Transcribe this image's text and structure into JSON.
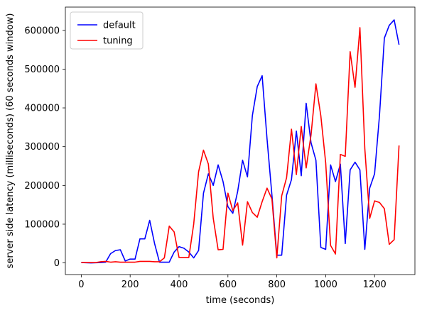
{
  "chart_data": {
    "type": "line",
    "title": "",
    "xlabel": "time (seconds)",
    "ylabel": "server side latency (milliseconds) (60 seconds window)",
    "xlim": [
      -65,
      1365
    ],
    "ylim": [
      -30000,
      660000
    ],
    "xticks": [
      0,
      200,
      400,
      600,
      800,
      1000,
      1200
    ],
    "xtick_labels": [
      "0",
      "200",
      "400",
      "600",
      "800",
      "1000",
      "1200"
    ],
    "yticks": [
      0,
      100000,
      200000,
      300000,
      400000,
      500000,
      600000
    ],
    "ytick_labels": [
      "0",
      "100000",
      "200000",
      "300000",
      "400000",
      "500000",
      "600000"
    ],
    "grid": false,
    "legend_position": "top-left",
    "series": [
      {
        "name": "default",
        "color": "#0000ff",
        "x": [
          0,
          20,
          40,
          60,
          80,
          100,
          120,
          140,
          160,
          180,
          200,
          220,
          240,
          260,
          280,
          300,
          320,
          340,
          360,
          380,
          400,
          420,
          440,
          460,
          480,
          500,
          520,
          540,
          560,
          580,
          600,
          620,
          640,
          660,
          680,
          700,
          720,
          740,
          760,
          780,
          800,
          820,
          840,
          860,
          880,
          900,
          920,
          940,
          960,
          980,
          1000,
          1020,
          1040,
          1060,
          1080,
          1100,
          1120,
          1140,
          1160,
          1180,
          1200,
          1220,
          1240,
          1260,
          1280,
          1300
        ],
        "y": [
          1000,
          500,
          0,
          500,
          1000,
          2000,
          24000,
          32000,
          34000,
          5000,
          10000,
          10000,
          62000,
          62000,
          110000,
          50000,
          2000,
          2000,
          2000,
          28000,
          42000,
          38000,
          28000,
          13000,
          32000,
          180000,
          230000,
          200000,
          253000,
          210000,
          145000,
          128000,
          185000,
          265000,
          222000,
          380000,
          455000,
          483000,
          320000,
          175000,
          20000,
          20000,
          175000,
          215000,
          340000,
          225000,
          412000,
          310000,
          265000,
          40000,
          35000,
          253000,
          210000,
          255000,
          50000,
          240000,
          260000,
          240000,
          35000,
          193000,
          230000,
          380000,
          580000,
          613000,
          627000,
          563000
        ]
      },
      {
        "name": "tuning",
        "color": "#ff0000",
        "x": [
          0,
          20,
          40,
          60,
          80,
          100,
          120,
          140,
          160,
          180,
          200,
          220,
          240,
          260,
          280,
          300,
          320,
          340,
          360,
          380,
          400,
          420,
          440,
          460,
          480,
          500,
          520,
          540,
          560,
          580,
          600,
          620,
          640,
          660,
          680,
          700,
          720,
          740,
          760,
          780,
          800,
          820,
          840,
          860,
          880,
          900,
          920,
          940,
          960,
          980,
          1000,
          1020,
          1040,
          1060,
          1080,
          1100,
          1120,
          1140,
          1160,
          1180,
          1200,
          1220,
          1240,
          1260,
          1280,
          1300
        ],
        "y": [
          1000,
          1000,
          1000,
          1000,
          3000,
          4000,
          2000,
          3000,
          2000,
          2000,
          2000,
          2000,
          4000,
          4000,
          4000,
          3000,
          3000,
          13000,
          95000,
          80000,
          14000,
          14000,
          14000,
          100000,
          235000,
          291000,
          255000,
          115000,
          34000,
          35000,
          180000,
          135000,
          155000,
          46000,
          158000,
          130000,
          118000,
          158000,
          193000,
          165000,
          13000,
          173000,
          220000,
          345000,
          228000,
          352000,
          245000,
          330000,
          462000,
          380000,
          258000,
          45000,
          23000,
          280000,
          275000,
          545000,
          453000,
          607000,
          295000,
          115000,
          160000,
          156000,
          140000,
          48000,
          60000,
          303000
        ]
      }
    ]
  }
}
